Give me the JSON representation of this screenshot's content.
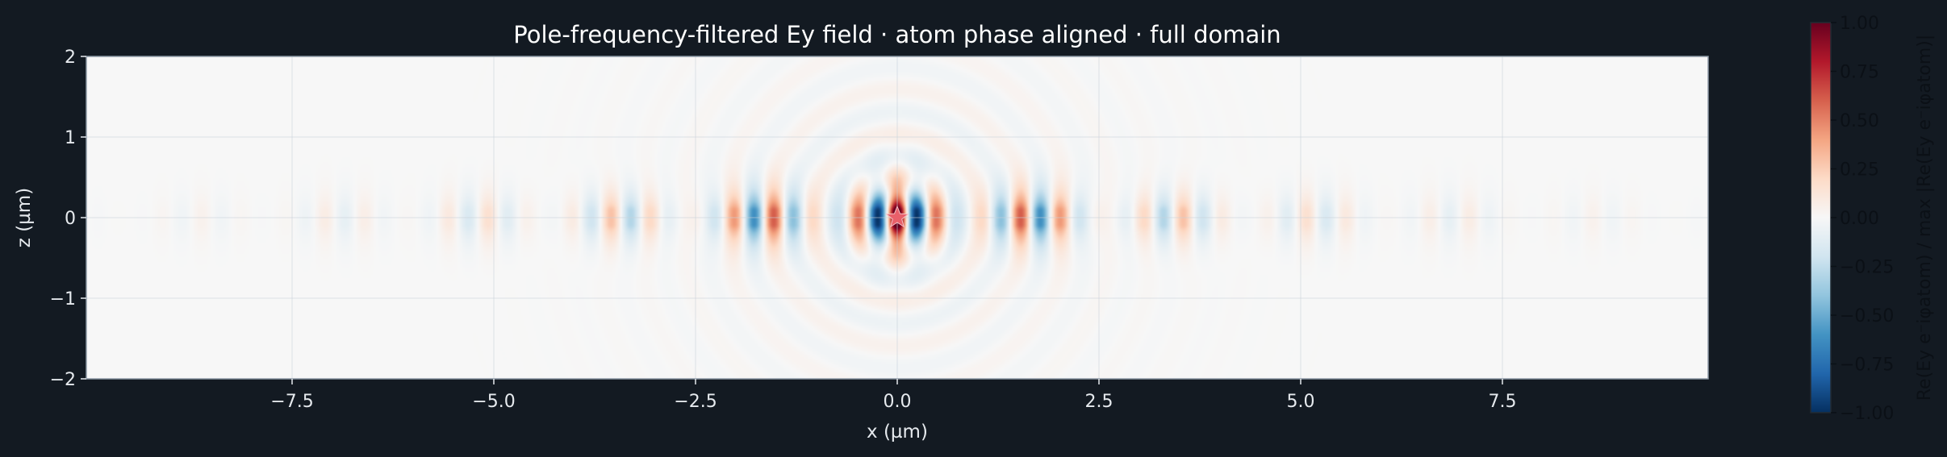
{
  "chart_data": {
    "type": "heatmap",
    "title": "Pole-frequency-filtered Ey field · atom phase aligned · full domain",
    "xlabel": "x (µm)",
    "ylabel": "z (µm)",
    "xlim": [
      -10.05,
      10.05
    ],
    "ylim": [
      -2,
      2
    ],
    "x_ticks": [
      -7.5,
      -5.0,
      -2.5,
      0.0,
      2.5,
      5.0,
      7.5
    ],
    "x_tick_labels": [
      "−7.5",
      "−5.0",
      "−2.5",
      "0.0",
      "2.5",
      "5.0",
      "7.5"
    ],
    "y_ticks": [
      -2,
      -1,
      0,
      1,
      2
    ],
    "y_tick_labels": [
      "−2",
      "−1",
      "0",
      "1",
      "2"
    ],
    "grid": true,
    "colormap": "RdBu_r",
    "field": {
      "guided_wavelength": 0.507,
      "guided_decay_length": 2.6,
      "radiation_decay_length": 1.3,
      "beat_wavelength": 1.74,
      "core_half_width": 0.1,
      "evanescent_decay_length": 0.18
    },
    "marker": {
      "label": "atom",
      "x": 0.0,
      "z": 0.0,
      "shape": "star",
      "color": "#e8606a"
    },
    "colorbar": {
      "label": "Re(Ey e⁻iφatom) / max |Re(Ey e⁻iφatom)|",
      "range": [
        -1.0,
        1.0
      ],
      "ticks": [
        1.0,
        0.75,
        0.5,
        0.25,
        0.0,
        -0.25,
        -0.5,
        -0.75,
        -1.0
      ],
      "tick_labels": [
        "1.00",
        "0.75",
        "0.50",
        "0.25",
        "0.00",
        "−0.25",
        "−0.50",
        "−0.75",
        "−1.00"
      ]
    }
  },
  "colors": {
    "background": "#131a22",
    "frame": "#8d99a6",
    "grid": "#c9d2da",
    "text": "#e6eaee",
    "cmap_stops": [
      "#053061",
      "#2166ac",
      "#4393c3",
      "#92c5de",
      "#d1e5f0",
      "#f7f7f7",
      "#fddbc7",
      "#f4a582",
      "#d6604d",
      "#b2182b",
      "#67001f"
    ]
  }
}
